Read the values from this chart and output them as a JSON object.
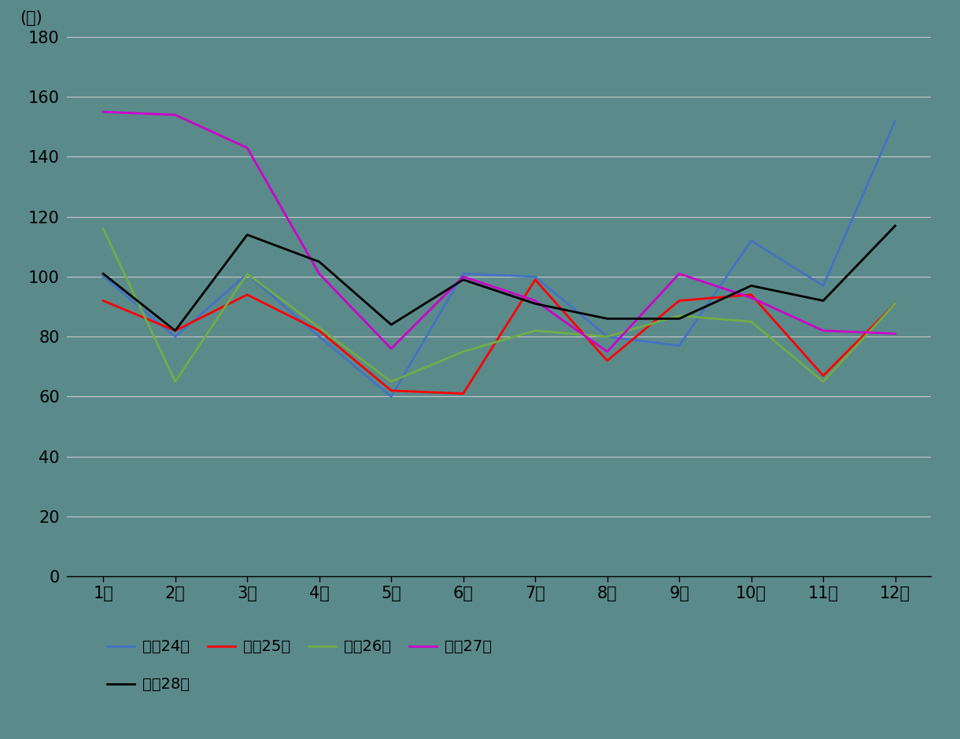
{
  "months": [
    1,
    2,
    3,
    4,
    5,
    6,
    7,
    8,
    9,
    10,
    11,
    12
  ],
  "month_labels": [
    "1月",
    "2月",
    "3月",
    "4月",
    "5月",
    "6月",
    "7月",
    "8月",
    "9月",
    "10月",
    "11月",
    "12月"
  ],
  "series": [
    {
      "label": "平成24年",
      "color": "#4472C4",
      "values": [
        100,
        80,
        101,
        80,
        60,
        101,
        100,
        80,
        77,
        112,
        97,
        152
      ]
    },
    {
      "label": "平成25年",
      "color": "#FF0000",
      "values": [
        92,
        82,
        94,
        82,
        62,
        61,
        99,
        72,
        92,
        94,
        67,
        91
      ]
    },
    {
      "label": "平成26年",
      "color": "#70AD47",
      "values": [
        116,
        65,
        101,
        83,
        65,
        75,
        82,
        80,
        87,
        85,
        65,
        91
      ]
    },
    {
      "label": "平成27年",
      "color": "#CC00CC",
      "values": [
        155,
        154,
        143,
        101,
        76,
        100,
        92,
        75,
        101,
        93,
        82,
        81
      ]
    },
    {
      "label": "平成28年",
      "color": "#000000",
      "values": [
        101,
        82,
        114,
        105,
        84,
        99,
        91,
        86,
        86,
        97,
        92,
        117
      ]
    }
  ],
  "ylim": [
    0,
    180
  ],
  "yticks": [
    0,
    20,
    40,
    60,
    80,
    100,
    120,
    140,
    160,
    180
  ],
  "ylabel": "(件)",
  "background_color": "#5b8a8b",
  "grid_color": "#c8c8c8",
  "axis_fontsize": 15,
  "legend_fontsize": 14
}
